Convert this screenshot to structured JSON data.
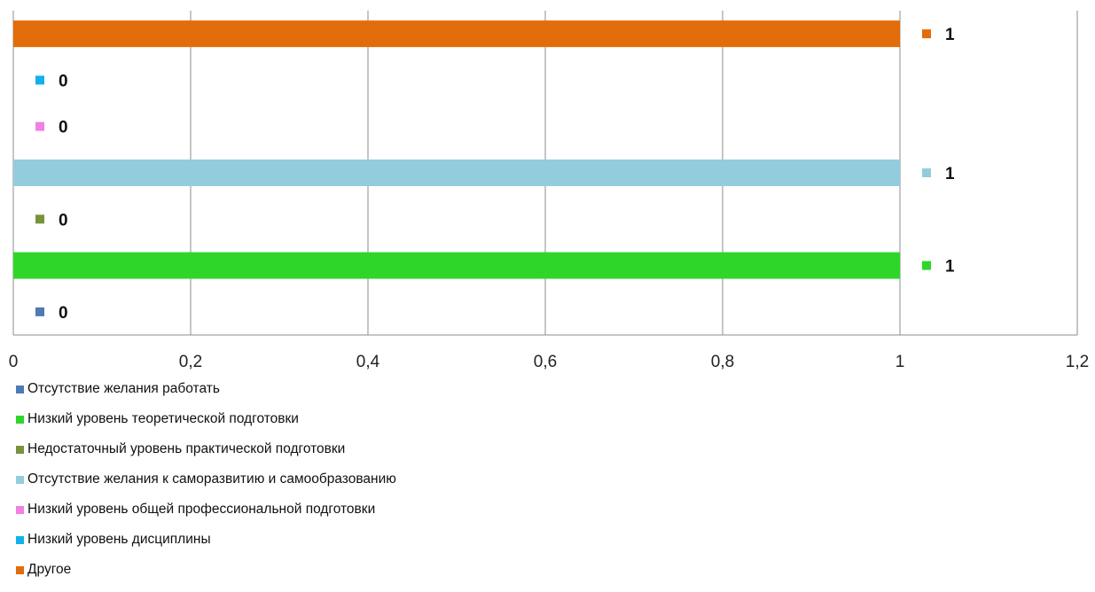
{
  "chart_data": {
    "type": "bar",
    "orientation": "horizontal",
    "categories": [
      "Отсутствие желания работать",
      "Низкий уровень теоретической подготовки",
      "Недостаточный уровень практической подготовки",
      "Отсутствие желания к саморазвитию и самообразованию",
      "Низкий уровень общей профессиональной подготовки",
      "Низкий уровень дисциплины",
      "Другое"
    ],
    "series": [
      {
        "name": "Отсутствие желания работать",
        "value": 0,
        "label": "0",
        "color": "#4f7ab3"
      },
      {
        "name": "Низкий уровень теоретической подготовки",
        "value": 1,
        "label": "1",
        "color": "#2ed62a"
      },
      {
        "name": "Недостаточный уровень практической подготовки",
        "value": 0,
        "label": "0",
        "color": "#77933c"
      },
      {
        "name": "Отсутствие желания к саморазвитию и самообразованию",
        "value": 1,
        "label": "1",
        "color": "#93cddd"
      },
      {
        "name": "Низкий уровень общей профессиональной подготовки",
        "value": 0,
        "label": "0",
        "color": "#f47fe2"
      },
      {
        "name": "Низкий уровень дисциплины",
        "value": 0,
        "label": "0",
        "color": "#11b1ed"
      },
      {
        "name": "Другое",
        "value": 1,
        "label": "1",
        "color": "#e36c0a"
      }
    ],
    "xlim": [
      0,
      1.2
    ],
    "xticks": [
      "0",
      "0,2",
      "0,4",
      "0,6",
      "0,8",
      "1",
      "1,2"
    ],
    "grid": true,
    "legend_position": "bottom-left",
    "title": "",
    "xlabel": "",
    "ylabel": ""
  }
}
